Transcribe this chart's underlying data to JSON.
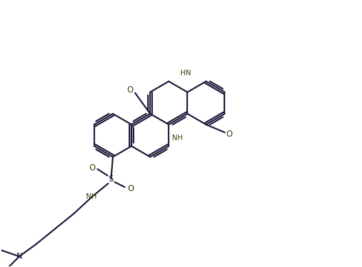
{
  "bg_color": "#ffffff",
  "line_color": "#1a1a3a",
  "bond_lw": 1.6,
  "figsize": [
    5.26,
    3.87
  ],
  "dpi": 100,
  "xlim": [
    0,
    10
  ],
  "ylim": [
    0,
    7.4
  ],
  "hex_side": 0.6,
  "nh_color": "#3a3a00",
  "o_color": "#3a3a00"
}
